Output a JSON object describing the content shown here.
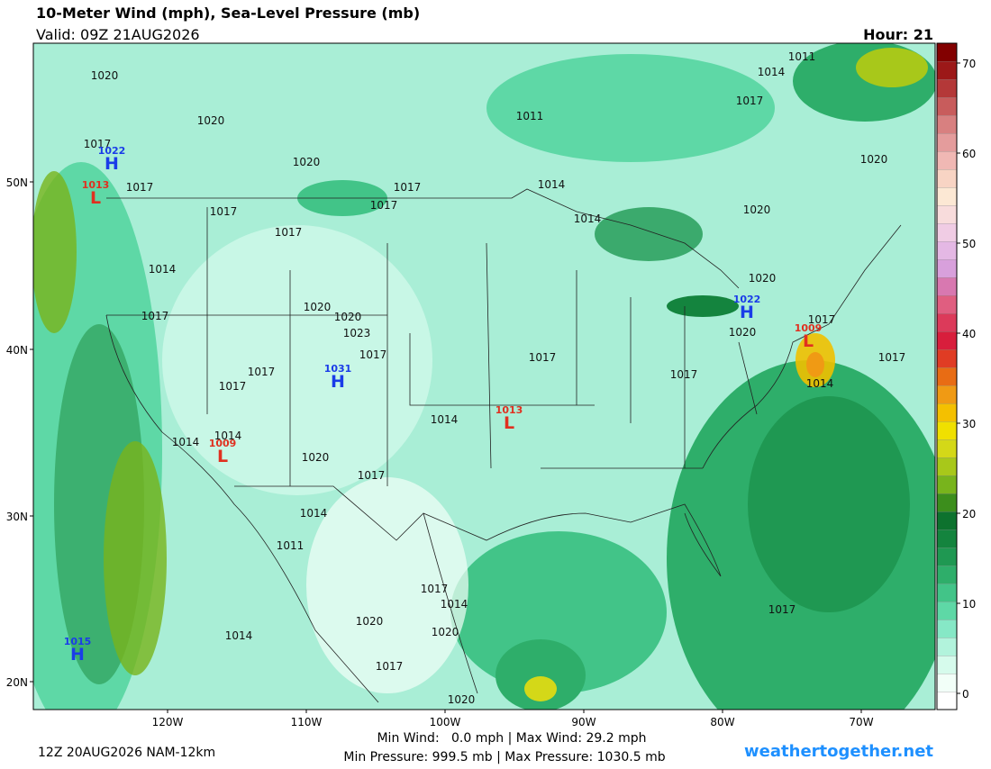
{
  "header": {
    "title": "10-Meter Wind (mph), Sea-Level Pressure (mb)",
    "valid": "Valid: 09Z 21AUG2026",
    "hour": "Hour: 21"
  },
  "map": {
    "lat_labels": [
      "50N",
      "40N",
      "30N",
      "20N"
    ],
    "lon_labels": [
      "120W",
      "110W",
      "100W",
      "90W",
      "80W",
      "70W"
    ],
    "centers": [
      {
        "type": "H",
        "value": 1022
      },
      {
        "type": "L",
        "value": 1013
      },
      {
        "type": "H",
        "value": 1022
      },
      {
        "type": "L",
        "value": 1009
      },
      {
        "type": "H",
        "value": 1031
      },
      {
        "type": "L",
        "value": 1013
      },
      {
        "type": "L",
        "value": 1009
      },
      {
        "type": "H",
        "value": 1015
      }
    ],
    "isobars": [
      1020,
      1020,
      1017,
      1017,
      1020,
      1017,
      1017,
      1014,
      1011,
      1014,
      1011,
      1017,
      1020,
      1020,
      1014,
      1017,
      1017,
      1014,
      1017,
      1020,
      1020,
      1023,
      1017,
      1017,
      1017,
      1017,
      1017,
      1017,
      1014,
      1020,
      1017,
      1020,
      1014,
      1014,
      1014,
      1020,
      1017,
      1014,
      1011,
      1014,
      1017,
      1014,
      1020,
      1020,
      1017,
      1020,
      1017
    ]
  },
  "colorbar": {
    "ticks": [
      0,
      10,
      20,
      30,
      40,
      50,
      60,
      70
    ],
    "colors": [
      "#ffffff",
      "#f2fff8",
      "#d6fbec",
      "#b2f3dc",
      "#86e8c6",
      "#5ed8a6",
      "#42c488",
      "#2eae6a",
      "#1f9852",
      "#14843e",
      "#0d722e",
      "#3c8e1c",
      "#78b41c",
      "#a8c81a",
      "#d4d818",
      "#f0e000",
      "#f4c000",
      "#f09a14",
      "#e86c14",
      "#e03c24",
      "#d81e3c",
      "#dc3a5a",
      "#e05e80",
      "#d878b0",
      "#d8a0dc",
      "#e4b8e4",
      "#f0cce4",
      "#f8dcdc",
      "#fce8d4",
      "#f8d4c4",
      "#f0b8b4",
      "#e49c9c",
      "#d88080",
      "#c85c5c",
      "#b43838",
      "#9c1818",
      "#820000"
    ]
  },
  "footer": {
    "model": "12Z 20AUG2026 NAM-12km",
    "wind": "Min Wind:   0.0 mph | Max Wind: 29.2 mph",
    "pressure": "Min Pressure: 999.5 mb | Max Pressure: 1030.5 mb",
    "site": "weathertogether.net"
  }
}
